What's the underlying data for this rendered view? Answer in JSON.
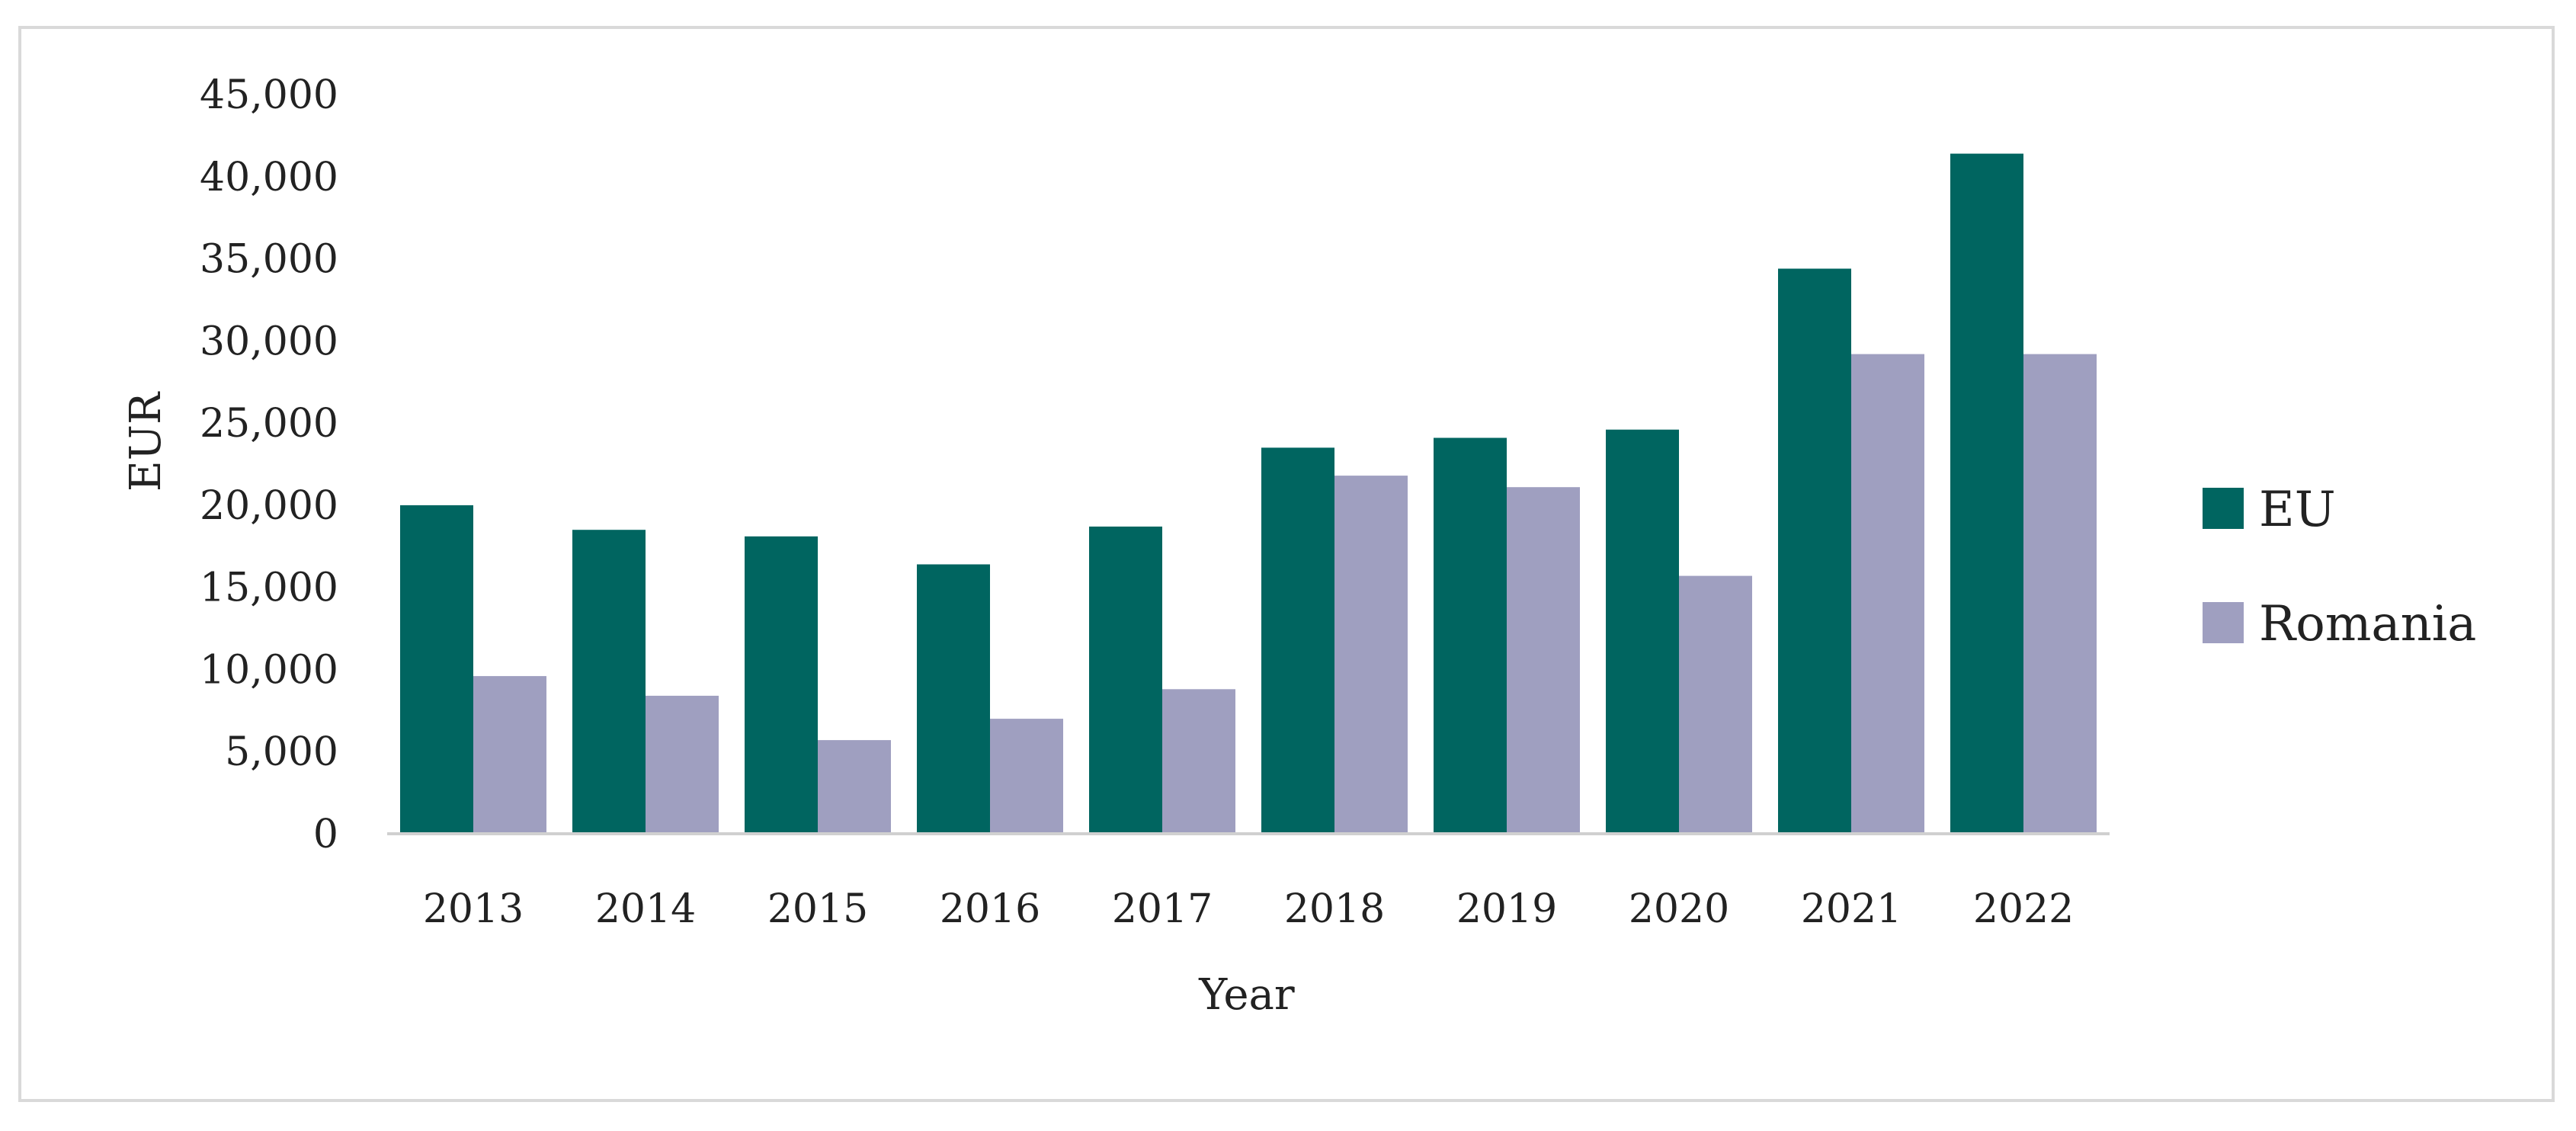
{
  "chart_data": {
    "type": "bar",
    "categories": [
      "2013",
      "2014",
      "2015",
      "2016",
      "2017",
      "2018",
      "2019",
      "2020",
      "2021",
      "2022"
    ],
    "series": [
      {
        "name": "EU",
        "color": "#006560",
        "values": [
          20000,
          18500,
          18100,
          16400,
          18700,
          23500,
          24100,
          24600,
          34400,
          41400
        ]
      },
      {
        "name": "Romania",
        "color": "#9f9fc0",
        "values": [
          9600,
          8400,
          5700,
          7000,
          8800,
          21800,
          21100,
          15700,
          29200,
          29200
        ]
      }
    ],
    "xlabel": "Year",
    "ylabel": "EUR",
    "ylim": [
      0,
      45000
    ],
    "yticks": [
      0,
      5000,
      10000,
      15000,
      20000,
      25000,
      30000,
      35000,
      40000,
      45000
    ],
    "ytick_labels": [
      "0",
      "5,000",
      "10,000",
      "15,000",
      "20,000",
      "25,000",
      "30,000",
      "35,000",
      "40,000",
      "45,000"
    ],
    "grid": false,
    "legend_position": "right"
  }
}
